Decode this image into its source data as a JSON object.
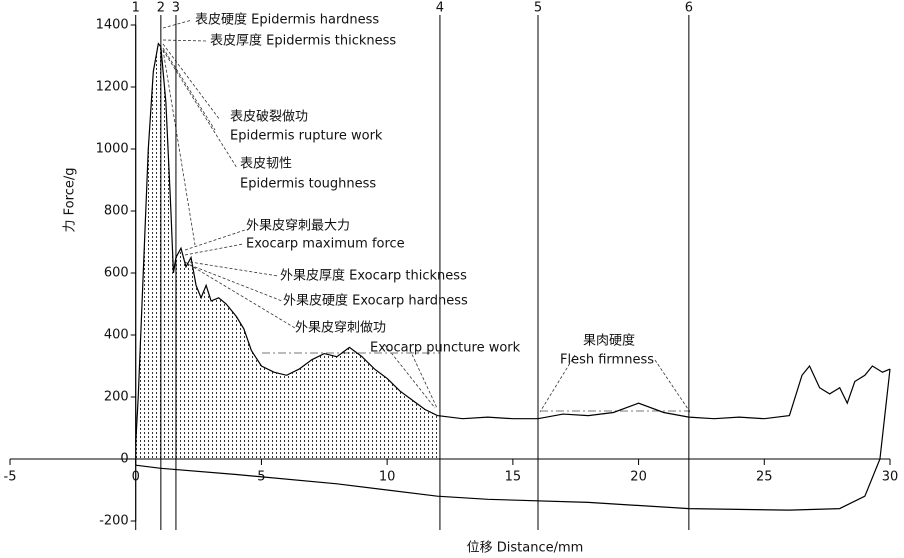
{
  "chart_data": {
    "type": "line",
    "xlabel": "位移 Distance/mm",
    "ylabel": "力 Force/g",
    "xlim": [
      -5,
      30
    ],
    "xticks": [
      -5,
      0,
      5,
      10,
      15,
      20,
      25,
      30
    ],
    "ylim": [
      -200,
      1400
    ],
    "yticks": [
      -200,
      0,
      200,
      400,
      600,
      800,
      1000,
      1200,
      1400
    ],
    "markers": [
      {
        "label": "1",
        "x": 0
      },
      {
        "label": "2",
        "x": 1
      },
      {
        "label": "3",
        "x": 1.6
      },
      {
        "label": "4",
        "x": 12.1
      },
      {
        "label": "5",
        "x": 16
      },
      {
        "label": "6",
        "x": 22
      }
    ],
    "color": "#000",
    "series": [
      {
        "x": [
          0,
          0.1,
          0.3,
          0.5,
          0.7,
          0.9,
          1.0,
          1.2,
          1.4,
          1.5,
          1.6,
          1.8,
          2.0,
          2.2,
          2.4,
          2.6,
          2.8,
          3.0,
          3.3,
          3.6,
          4.0,
          4.3,
          4.6,
          5.0,
          5.5,
          6.0,
          6.5,
          7.0,
          7.5,
          8.0,
          8.5,
          9.0,
          9.5,
          10.0,
          10.5,
          11.0,
          11.5,
          12.0,
          13,
          14,
          15,
          16,
          17,
          18,
          19,
          20,
          21,
          22,
          23,
          24,
          25,
          26,
          26.5,
          26.8,
          27.2,
          27.6,
          28,
          28.3,
          28.6,
          29,
          29.3,
          29.7,
          30
        ],
        "values": [
          50,
          200,
          600,
          1000,
          1250,
          1340,
          1330,
          1150,
          800,
          600,
          650,
          680,
          620,
          650,
          560,
          520,
          560,
          510,
          520,
          500,
          460,
          420,
          350,
          300,
          280,
          270,
          290,
          320,
          340,
          330,
          360,
          330,
          290,
          260,
          220,
          190,
          160,
          140,
          130,
          135,
          130,
          130,
          145,
          140,
          150,
          180,
          150,
          135,
          130,
          135,
          130,
          140,
          270,
          300,
          230,
          210,
          230,
          180,
          250,
          270,
          300,
          280,
          290
        ]
      },
      {
        "x": [
          30,
          29.6,
          29.0,
          28,
          26,
          22,
          18,
          14,
          12,
          8,
          4,
          1,
          0
        ],
        "values": [
          290,
          0,
          -120,
          -160,
          -165,
          -160,
          -140,
          -130,
          -120,
          -80,
          -50,
          -30,
          -20
        ]
      }
    ],
    "annotations": [
      "表皮硬度 Epidermis hardness",
      "表皮厚度 Epidermis thickness",
      "表皮破裂做功",
      "Epidermis rupture work",
      "表皮韧性",
      "Epidermis toughness",
      "外果皮穿刺最大力",
      "Exocarp maximum force",
      "外果皮厚度 Exocarp thickness",
      "外果皮硬度 Exocarp hardness",
      "外果皮穿刺做功",
      "Exocarp puncture work",
      "果肉硬度",
      "Flesh firmness"
    ]
  }
}
